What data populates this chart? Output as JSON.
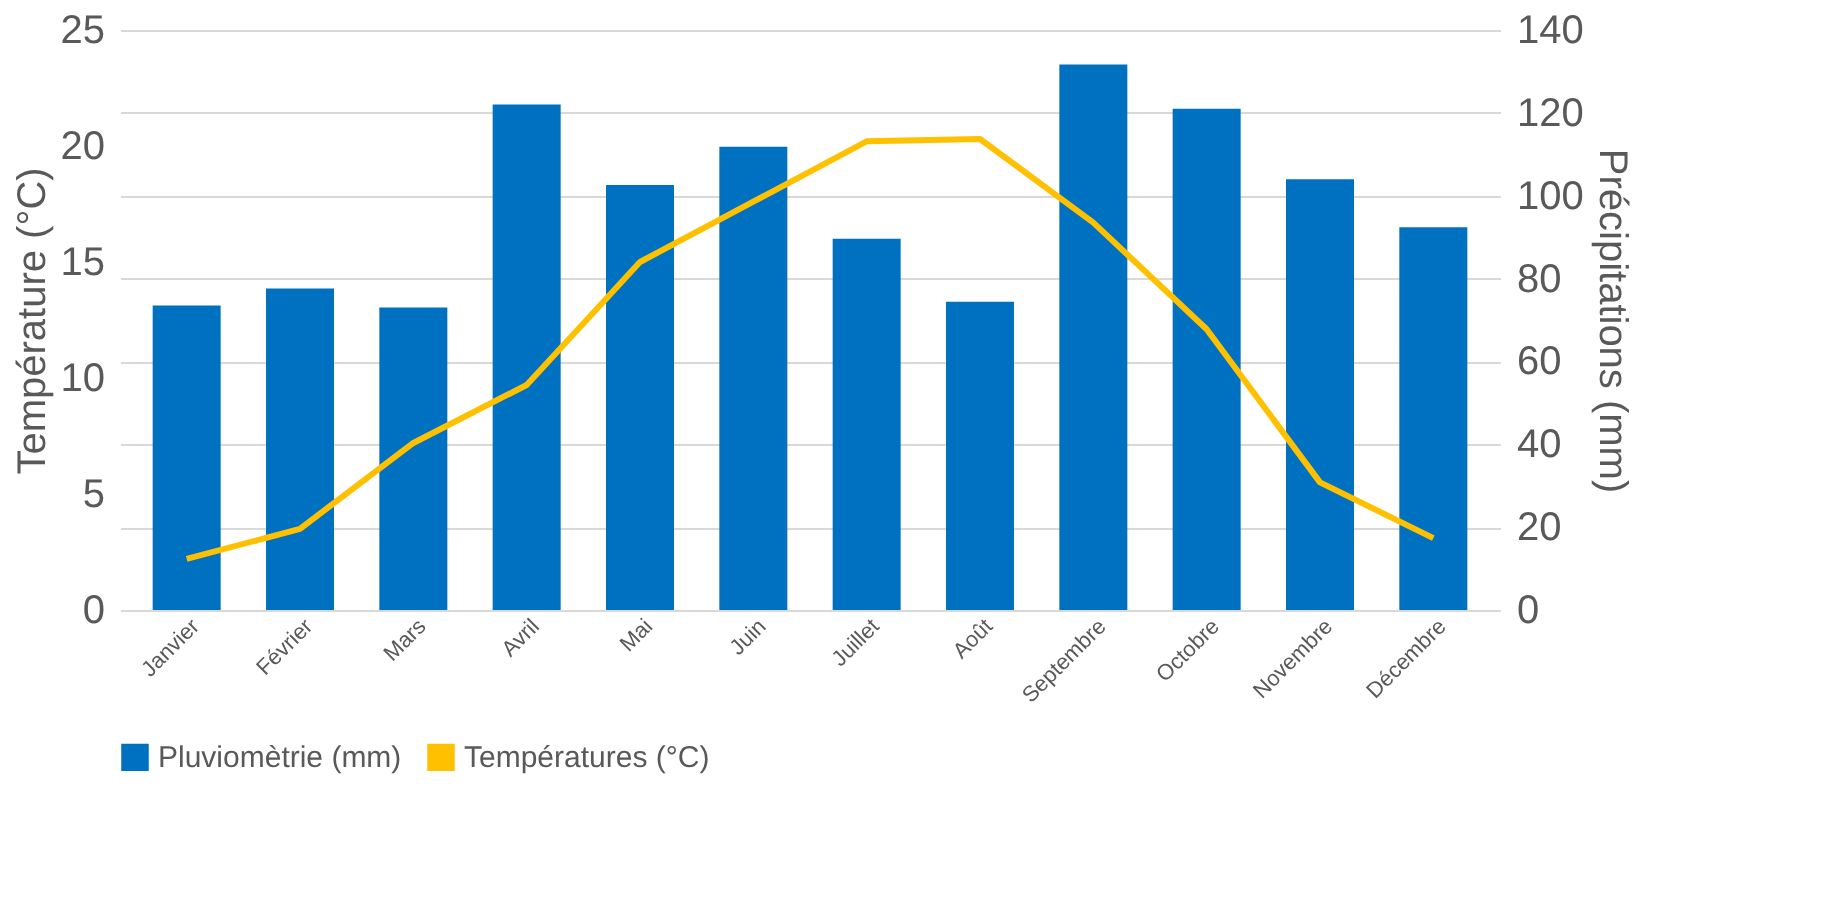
{
  "chart_data": {
    "type": "bar",
    "categories": [
      "Janvier",
      "Février",
      "Mars",
      "Avril",
      "Mai",
      "Juin",
      "Juillet",
      "Août",
      "Septembre",
      "Octobre",
      "Novembre",
      "Décembre"
    ],
    "series": [
      {
        "name": "Pluviomètrie (mm)",
        "axis": "y2",
        "color": "#0070c0",
        "values": [
          73.5,
          77.6,
          73,
          122,
          102.6,
          111.8,
          89.6,
          74.4,
          131.7,
          121,
          104,
          92.4
        ]
      },
      {
        "name": "Températures (°C)",
        "type": "line",
        "axis": "y",
        "color": "#ffc000",
        "values": [
          2.2,
          3.5,
          7.2,
          9.7,
          15,
          17.6,
          20.2,
          20.3,
          16.7,
          12.1,
          5.5,
          3.1
        ]
      }
    ],
    "ylabel": "Température (°C)",
    "y2label": "Précipitations (mm)",
    "ylim": [
      0,
      25
    ],
    "yticks": [
      0,
      5,
      10,
      15,
      20,
      25
    ],
    "y2lim": [
      0,
      140
    ],
    "y2ticks": [
      0,
      20,
      40,
      60,
      80,
      100,
      120,
      140
    ],
    "grid": "y2",
    "legend": "bottom"
  }
}
